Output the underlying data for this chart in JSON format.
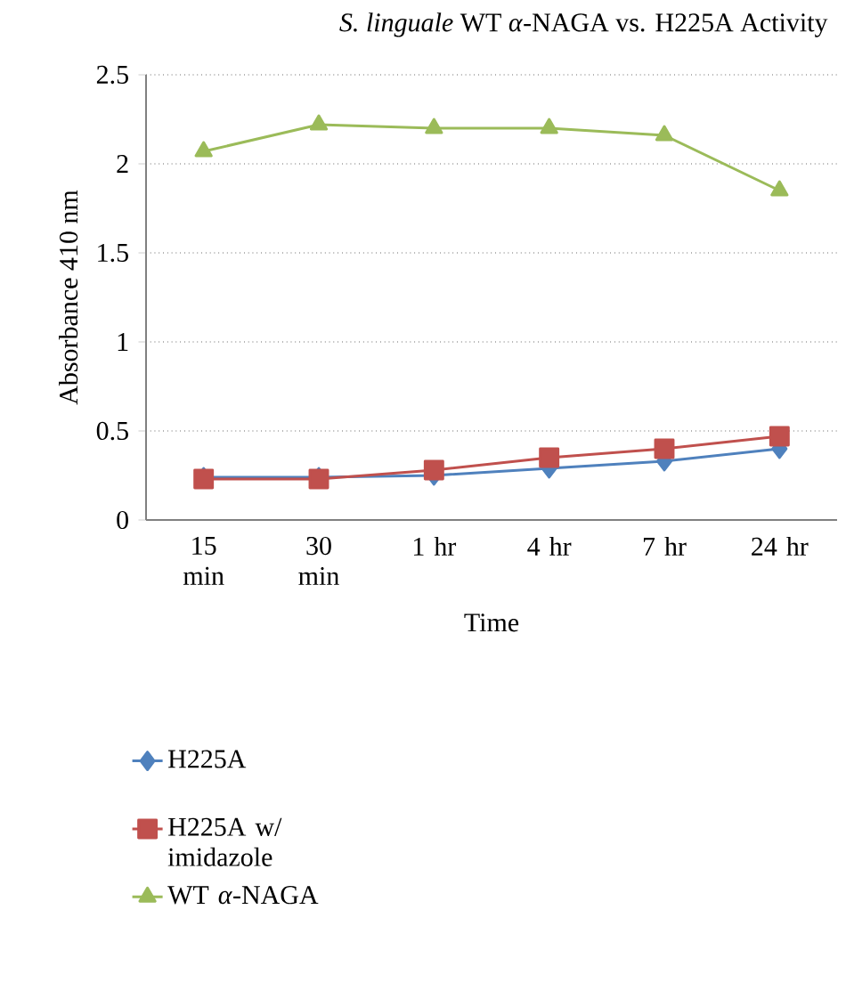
{
  "chart_data": {
    "type": "line",
    "title": "*S. linguale* WT *α*-NAGA vs. H225A Activity",
    "xlabel": "Time",
    "ylabel": "Absorbance 410 nm",
    "categories": [
      "15 min",
      "30 min",
      "1 hr",
      "4 hr",
      "7 hr",
      "24 hr"
    ],
    "series": [
      {
        "name": "H225A",
        "color": "#4f81bd",
        "marker": "diamond",
        "values": [
          0.24,
          0.24,
          0.25,
          0.29,
          0.33,
          0.4
        ]
      },
      {
        "name": "H225A w/ imidazole",
        "color": "#c0504d",
        "marker": "square",
        "values": [
          0.23,
          0.23,
          0.28,
          0.35,
          0.4,
          0.47
        ]
      },
      {
        "name": "WT *α*-NAGA",
        "color": "#9bbb59",
        "marker": "triangle",
        "values": [
          2.07,
          2.22,
          2.2,
          2.2,
          2.16,
          1.85
        ]
      }
    ],
    "ylim": [
      0,
      2.5
    ],
    "yticks": [
      0,
      0.5,
      1,
      1.5,
      2,
      2.5
    ],
    "grid": "y",
    "legend": "bottom",
    "line_style": "solid"
  }
}
